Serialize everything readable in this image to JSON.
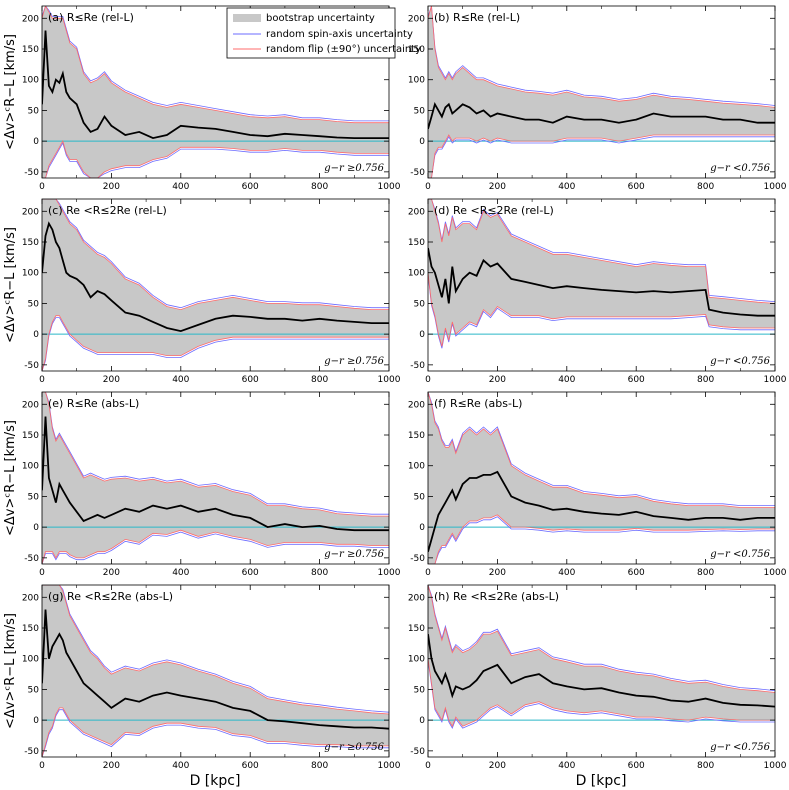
{
  "figure": {
    "ylabel": "<Δv>ᶜR−L [km/s]",
    "xlabel": "D [kpc]",
    "legend": {
      "bootstrap": "bootstrap uncertainty",
      "spin": "random spin-axis uncertainty",
      "flip": "random flip (±90°) uncertainty"
    },
    "colors": {
      "median": "#000000",
      "band": "#c8c8c8",
      "spin": "#6b6bff",
      "flip": "#ff6b6b",
      "zero": "#2ab7c8"
    }
  },
  "chart_data": [
    {
      "type": "line",
      "panel": "a",
      "label": "(a) R≤Re (rel-L)",
      "color_cut": "g−r ≥0.756",
      "xlim": [
        0,
        1000
      ],
      "ylim": [
        -60,
        220
      ],
      "x": [
        0,
        10,
        20,
        30,
        40,
        50,
        60,
        70,
        80,
        100,
        120,
        140,
        160,
        180,
        200,
        240,
        280,
        320,
        360,
        400,
        450,
        500,
        550,
        600,
        650,
        700,
        750,
        800,
        850,
        900,
        950,
        1000
      ],
      "median": [
        60,
        180,
        90,
        80,
        100,
        95,
        110,
        80,
        70,
        60,
        30,
        15,
        20,
        40,
        25,
        10,
        15,
        5,
        10,
        25,
        22,
        20,
        15,
        10,
        8,
        12,
        10,
        8,
        6,
        5,
        5,
        5
      ],
      "upper": [
        200,
        220,
        210,
        200,
        200,
        200,
        200,
        180,
        160,
        150,
        110,
        95,
        100,
        110,
        95,
        80,
        70,
        60,
        55,
        60,
        55,
        50,
        45,
        40,
        38,
        40,
        35,
        35,
        32,
        30,
        30,
        30
      ],
      "lower": [
        -60,
        -60,
        -40,
        -30,
        -20,
        -10,
        0,
        -20,
        -30,
        -30,
        -50,
        -60,
        -60,
        -50,
        -45,
        -40,
        -40,
        -30,
        -25,
        -10,
        -10,
        -10,
        -12,
        -15,
        -15,
        -12,
        -15,
        -15,
        -18,
        -20,
        -20,
        -20
      ]
    },
    {
      "type": "line",
      "panel": "b",
      "label": "(b) R≤Re (rel-L)",
      "color_cut": "g−r <0.756",
      "xlim": [
        0,
        1000
      ],
      "ylim": [
        -60,
        220
      ],
      "x": [
        0,
        10,
        20,
        30,
        40,
        50,
        60,
        70,
        80,
        100,
        120,
        140,
        160,
        180,
        200,
        240,
        280,
        320,
        360,
        400,
        450,
        500,
        550,
        600,
        650,
        700,
        750,
        800,
        850,
        900,
        950,
        1000
      ],
      "median": [
        20,
        40,
        60,
        50,
        40,
        55,
        60,
        45,
        50,
        60,
        55,
        45,
        50,
        40,
        45,
        40,
        35,
        35,
        30,
        40,
        35,
        35,
        30,
        35,
        45,
        40,
        40,
        40,
        35,
        35,
        30,
        30
      ],
      "upper": [
        200,
        220,
        150,
        120,
        110,
        100,
        110,
        100,
        110,
        120,
        110,
        100,
        100,
        95,
        90,
        85,
        80,
        78,
        75,
        80,
        72,
        70,
        65,
        68,
        75,
        70,
        68,
        65,
        62,
        60,
        58,
        55
      ],
      "lower": [
        -60,
        -60,
        -20,
        -10,
        -10,
        0,
        10,
        0,
        5,
        5,
        5,
        0,
        5,
        0,
        5,
        0,
        0,
        0,
        0,
        5,
        5,
        5,
        0,
        5,
        10,
        10,
        10,
        10,
        10,
        10,
        10,
        10
      ]
    },
    {
      "type": "line",
      "panel": "c",
      "label": "(c) Re <R≤2Re (rel-L)",
      "color_cut": "g−r ≥0.756",
      "xlim": [
        0,
        1000
      ],
      "ylim": [
        -60,
        220
      ],
      "x": [
        0,
        10,
        20,
        30,
        40,
        50,
        60,
        70,
        80,
        100,
        120,
        140,
        160,
        180,
        200,
        240,
        280,
        320,
        360,
        400,
        450,
        500,
        550,
        600,
        650,
        700,
        750,
        800,
        850,
        900,
        950,
        1000
      ],
      "median": [
        100,
        160,
        180,
        170,
        150,
        140,
        120,
        100,
        95,
        90,
        80,
        60,
        70,
        65,
        55,
        35,
        30,
        20,
        10,
        5,
        15,
        25,
        30,
        28,
        25,
        25,
        22,
        25,
        22,
        20,
        18,
        18
      ],
      "upper": [
        220,
        220,
        220,
        220,
        220,
        210,
        200,
        190,
        180,
        170,
        150,
        140,
        130,
        125,
        115,
        90,
        80,
        60,
        45,
        40,
        50,
        55,
        60,
        55,
        50,
        50,
        48,
        48,
        45,
        42,
        40,
        40
      ],
      "lower": [
        -60,
        -40,
        0,
        20,
        30,
        30,
        20,
        10,
        0,
        -10,
        -20,
        -25,
        -30,
        -30,
        -30,
        -30,
        -30,
        -30,
        -35,
        -35,
        -20,
        -10,
        -5,
        -5,
        -5,
        -5,
        -5,
        -5,
        -5,
        -5,
        -5,
        -5
      ]
    },
    {
      "type": "line",
      "panel": "d",
      "label": "(d) Re <R≤2Re (rel-L)",
      "color_cut": "g−r <0.756",
      "xlim": [
        0,
        1000
      ],
      "ylim": [
        -60,
        220
      ],
      "x": [
        0,
        10,
        20,
        30,
        40,
        50,
        60,
        70,
        80,
        100,
        120,
        140,
        160,
        180,
        200,
        240,
        280,
        320,
        360,
        400,
        450,
        500,
        550,
        600,
        650,
        700,
        750,
        800,
        810,
        850,
        900,
        950,
        1000
      ],
      "median": [
        140,
        110,
        100,
        80,
        60,
        90,
        50,
        110,
        70,
        90,
        100,
        95,
        120,
        110,
        115,
        90,
        85,
        80,
        75,
        78,
        75,
        72,
        70,
        68,
        70,
        68,
        70,
        72,
        40,
        35,
        32,
        30,
        30
      ],
      "upper": [
        220,
        220,
        200,
        180,
        150,
        180,
        160,
        190,
        170,
        180,
        180,
        170,
        200,
        190,
        195,
        160,
        150,
        140,
        130,
        130,
        125,
        120,
        115,
        110,
        115,
        112,
        110,
        110,
        60,
        58,
        55,
        52,
        50
      ],
      "lower": [
        100,
        50,
        30,
        0,
        -20,
        10,
        -10,
        20,
        0,
        10,
        20,
        15,
        40,
        30,
        45,
        30,
        30,
        30,
        25,
        28,
        28,
        28,
        28,
        28,
        28,
        28,
        30,
        32,
        15,
        12,
        10,
        10,
        10
      ]
    },
    {
      "type": "line",
      "panel": "e",
      "label": "(e) R≤Re (abs-L)",
      "color_cut": "g−r ≥0.756",
      "xlim": [
        0,
        1000
      ],
      "ylim": [
        -60,
        220
      ],
      "x": [
        0,
        10,
        20,
        30,
        40,
        50,
        60,
        70,
        80,
        100,
        120,
        140,
        160,
        180,
        200,
        240,
        280,
        320,
        360,
        400,
        450,
        500,
        550,
        600,
        650,
        700,
        750,
        800,
        850,
        900,
        950,
        1000
      ],
      "median": [
        60,
        180,
        80,
        60,
        40,
        70,
        60,
        50,
        40,
        25,
        10,
        15,
        20,
        15,
        20,
        30,
        25,
        35,
        30,
        35,
        25,
        30,
        20,
        15,
        0,
        5,
        0,
        2,
        -3,
        -5,
        -5,
        -5
      ],
      "upper": [
        220,
        220,
        200,
        160,
        140,
        150,
        140,
        130,
        120,
        100,
        80,
        85,
        80,
        75,
        78,
        80,
        75,
        78,
        72,
        75,
        65,
        68,
        58,
        52,
        35,
        35,
        30,
        28,
        22,
        20,
        18,
        18
      ],
      "lower": [
        -60,
        -40,
        -40,
        -40,
        -50,
        -40,
        -40,
        -40,
        -45,
        -50,
        -50,
        -45,
        -40,
        -40,
        -35,
        -20,
        -25,
        -10,
        -12,
        -5,
        -15,
        -8,
        -15,
        -20,
        -30,
        -25,
        -25,
        -25,
        -28,
        -28,
        -30,
        -30
      ]
    },
    {
      "type": "line",
      "panel": "f",
      "label": "(f) R≤Re (abs-L)",
      "color_cut": "g−r <0.756",
      "xlim": [
        0,
        1000
      ],
      "ylim": [
        -60,
        220
      ],
      "x": [
        0,
        10,
        20,
        30,
        40,
        50,
        60,
        70,
        80,
        100,
        120,
        140,
        160,
        180,
        200,
        240,
        280,
        320,
        360,
        400,
        450,
        500,
        550,
        600,
        650,
        700,
        750,
        800,
        850,
        900,
        950,
        1000
      ],
      "median": [
        -40,
        -20,
        0,
        20,
        30,
        40,
        50,
        60,
        45,
        70,
        80,
        80,
        85,
        85,
        90,
        50,
        40,
        35,
        28,
        30,
        25,
        22,
        20,
        25,
        18,
        15,
        12,
        15,
        15,
        12,
        15,
        15
      ],
      "upper": [
        220,
        200,
        170,
        160,
        140,
        130,
        130,
        140,
        120,
        150,
        160,
        150,
        160,
        150,
        160,
        100,
        85,
        75,
        65,
        65,
        55,
        52,
        48,
        50,
        42,
        38,
        35,
        35,
        35,
        32,
        32,
        32
      ],
      "lower": [
        -60,
        -60,
        -60,
        -40,
        -30,
        -30,
        -20,
        -10,
        -20,
        0,
        10,
        10,
        15,
        15,
        20,
        0,
        0,
        -2,
        -5,
        -3,
        -5,
        -5,
        -5,
        -2,
        -5,
        -5,
        -5,
        -4,
        -3,
        -4,
        -3,
        -3
      ]
    },
    {
      "type": "line",
      "panel": "g",
      "label": "(g) Re <R≤2Re (abs-L)",
      "color_cut": "g−r ≥0.756",
      "xlim": [
        0,
        1000
      ],
      "ylim": [
        -60,
        220
      ],
      "x": [
        0,
        10,
        20,
        30,
        40,
        50,
        60,
        70,
        80,
        100,
        120,
        140,
        160,
        180,
        200,
        240,
        280,
        320,
        360,
        400,
        450,
        500,
        550,
        600,
        650,
        700,
        750,
        800,
        850,
        900,
        950,
        1000
      ],
      "median": [
        60,
        180,
        100,
        120,
        130,
        140,
        130,
        110,
        100,
        80,
        60,
        50,
        40,
        30,
        20,
        35,
        30,
        40,
        45,
        40,
        35,
        30,
        20,
        15,
        0,
        -2,
        -5,
        -8,
        -10,
        -12,
        -12,
        -14
      ],
      "upper": [
        220,
        220,
        220,
        220,
        220,
        220,
        210,
        190,
        170,
        150,
        130,
        110,
        100,
        85,
        75,
        85,
        80,
        90,
        95,
        90,
        80,
        72,
        60,
        52,
        35,
        30,
        25,
        22,
        18,
        15,
        12,
        10
      ],
      "lower": [
        -60,
        -40,
        -20,
        -10,
        10,
        20,
        20,
        10,
        0,
        -10,
        -20,
        -25,
        -30,
        -35,
        -40,
        -20,
        -22,
        -10,
        -5,
        -5,
        -10,
        -12,
        -22,
        -25,
        -35,
        -35,
        -38,
        -40,
        -40,
        -42,
        -42,
        -42
      ]
    },
    {
      "type": "line",
      "panel": "h",
      "label": "(h) Re <R≤2Re (abs-L)",
      "color_cut": "g−r <0.756",
      "xlim": [
        0,
        1000
      ],
      "ylim": [
        -60,
        220
      ],
      "x": [
        0,
        10,
        20,
        30,
        40,
        50,
        60,
        70,
        80,
        100,
        120,
        140,
        160,
        180,
        200,
        240,
        280,
        320,
        360,
        400,
        450,
        500,
        550,
        600,
        650,
        700,
        750,
        800,
        850,
        900,
        950,
        1000
      ],
      "median": [
        140,
        100,
        80,
        70,
        60,
        75,
        60,
        40,
        55,
        50,
        55,
        65,
        80,
        85,
        90,
        60,
        70,
        75,
        60,
        55,
        50,
        52,
        45,
        40,
        38,
        32,
        30,
        35,
        28,
        25,
        24,
        22
      ],
      "upper": [
        220,
        200,
        170,
        150,
        130,
        150,
        130,
        110,
        120,
        110,
        115,
        125,
        140,
        140,
        145,
        105,
        110,
        115,
        100,
        95,
        88,
        88,
        80,
        75,
        72,
        65,
        60,
        62,
        55,
        50,
        48,
        45
      ],
      "lower": [
        100,
        60,
        20,
        10,
        0,
        20,
        0,
        -10,
        5,
        -10,
        -5,
        0,
        10,
        20,
        25,
        10,
        25,
        30,
        20,
        15,
        12,
        15,
        10,
        5,
        5,
        2,
        0,
        5,
        2,
        0,
        0,
        0
      ]
    }
  ]
}
